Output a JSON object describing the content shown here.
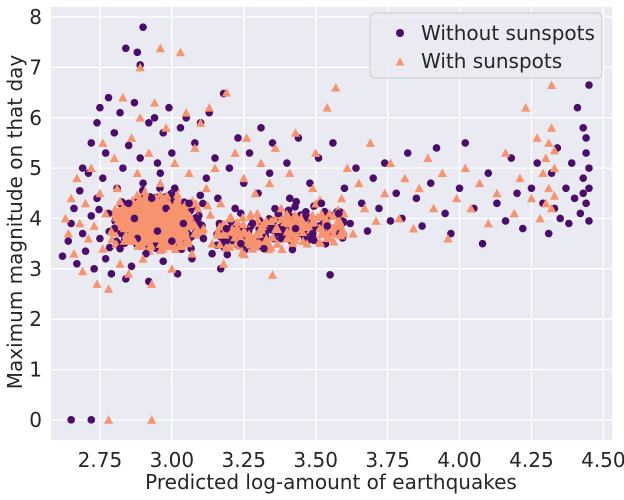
{
  "chart_data": {
    "type": "scatter",
    "title": "",
    "xlabel": "Predicted log-amount of earthquakes",
    "ylabel": "Maximum magnitude on that day",
    "xlim": [
      2.58,
      4.53
    ],
    "ylim": [
      -0.4,
      8.2
    ],
    "xticks": [
      "2.75",
      "3.00",
      "3.25",
      "3.50",
      "3.75",
      "4.00",
      "4.25",
      "4.50"
    ],
    "yticks": [
      "0",
      "1",
      "2",
      "3",
      "4",
      "5",
      "6",
      "7",
      "8"
    ],
    "grid": true,
    "background": "#eaeaf2",
    "legend_position": "upper-right",
    "series": [
      {
        "name": "Without sunspots",
        "marker": "circle",
        "color": "#4b0c6b",
        "points": [
          [
            2.62,
            3.25
          ],
          [
            2.64,
            3.55
          ],
          [
            2.65,
            3.9
          ],
          [
            2.66,
            4.2
          ],
          [
            2.67,
            3.1
          ],
          [
            2.68,
            4.55
          ],
          [
            2.69,
            3.7
          ],
          [
            2.69,
            5.0
          ],
          [
            2.7,
            3.35
          ],
          [
            2.71,
            4.9
          ],
          [
            2.72,
            4.05
          ],
          [
            2.72,
            5.5
          ],
          [
            2.73,
            3.0
          ],
          [
            2.74,
            4.4
          ],
          [
            2.74,
            5.9
          ],
          [
            2.75,
            3.6
          ],
          [
            2.75,
            6.2
          ],
          [
            2.76,
            4.8
          ],
          [
            2.77,
            3.2
          ],
          [
            2.77,
            5.3
          ],
          [
            2.78,
            6.4
          ],
          [
            2.78,
            4.1
          ],
          [
            2.79,
            2.9
          ],
          [
            2.8,
            5.7
          ],
          [
            2.8,
            3.8
          ],
          [
            2.81,
            4.6
          ],
          [
            2.82,
            6.1
          ],
          [
            2.82,
            3.4
          ],
          [
            2.83,
            5.0
          ],
          [
            2.84,
            2.8
          ],
          [
            2.84,
            7.38
          ],
          [
            2.85,
            4.3
          ],
          [
            2.85,
            5.45
          ],
          [
            2.86,
            3.05
          ],
          [
            2.87,
            6.3
          ],
          [
            2.87,
            4.0
          ],
          [
            2.88,
            7.3
          ],
          [
            2.88,
            3.6
          ],
          [
            2.89,
            5.2
          ],
          [
            2.89,
            7.05
          ],
          [
            2.9,
            7.8
          ],
          [
            2.9,
            4.7
          ],
          [
            2.91,
            3.3
          ],
          [
            2.92,
            5.9
          ],
          [
            2.92,
            2.75
          ],
          [
            2.93,
            4.4
          ],
          [
            2.94,
            6.0
          ],
          [
            2.95,
            3.75
          ],
          [
            2.95,
            5.1
          ],
          [
            2.96,
            4.9
          ],
          [
            2.97,
            3.15
          ],
          [
            2.97,
            5.7
          ],
          [
            2.98,
            4.2
          ],
          [
            2.99,
            6.2
          ],
          [
            3.0,
            3.55
          ],
          [
            3.0,
            5.3
          ],
          [
            3.01,
            4.6
          ],
          [
            3.02,
            2.9
          ],
          [
            3.03,
            5.8
          ],
          [
            3.04,
            3.9
          ],
          [
            3.05,
            6.0
          ],
          [
            3.06,
            4.3
          ],
          [
            3.07,
            3.2
          ],
          [
            3.08,
            5.5
          ],
          [
            3.09,
            4.0
          ],
          [
            3.1,
            5.9
          ],
          [
            3.11,
            3.6
          ],
          [
            3.12,
            4.8
          ],
          [
            3.13,
            6.1
          ],
          [
            3.14,
            3.3
          ],
          [
            3.15,
            5.2
          ],
          [
            3.16,
            4.4
          ],
          [
            3.17,
            3.0
          ],
          [
            3.18,
            6.48
          ],
          [
            3.19,
            3.8
          ],
          [
            3.2,
            5.0
          ],
          [
            3.22,
            4.2
          ],
          [
            3.23,
            5.6
          ],
          [
            3.24,
            3.5
          ],
          [
            3.25,
            4.7
          ],
          [
            3.27,
            5.3
          ],
          [
            3.28,
            3.9
          ],
          [
            3.3,
            4.5
          ],
          [
            3.31,
            5.8
          ],
          [
            3.32,
            3.4
          ],
          [
            3.34,
            4.9
          ],
          [
            3.35,
            5.5
          ],
          [
            3.37,
            4.1
          ],
          [
            3.38,
            3.6
          ],
          [
            3.4,
            5.1
          ],
          [
            3.41,
            4.4
          ],
          [
            3.43,
            3.8
          ],
          [
            3.44,
            5.6
          ],
          [
            3.46,
            4.0
          ],
          [
            3.48,
            4.7
          ],
          [
            3.49,
            3.7
          ],
          [
            3.51,
            5.2
          ],
          [
            3.52,
            4.3
          ],
          [
            3.54,
            3.85
          ],
          [
            3.55,
            2.88
          ],
          [
            3.56,
            5.5
          ],
          [
            3.58,
            4.1
          ],
          [
            3.6,
            4.6
          ],
          [
            3.62,
            3.9
          ],
          [
            3.64,
            5.0
          ],
          [
            3.66,
            4.3
          ],
          [
            3.68,
            3.75
          ],
          [
            3.7,
            4.8
          ],
          [
            3.72,
            4.2
          ],
          [
            3.74,
            5.1
          ],
          [
            3.76,
            3.95
          ],
          [
            3.78,
            4.5
          ],
          [
            3.8,
            4.0
          ],
          [
            3.82,
            5.3
          ],
          [
            3.85,
            4.4
          ],
          [
            3.87,
            3.85
          ],
          [
            3.9,
            4.7
          ],
          [
            3.92,
            5.4
          ],
          [
            3.95,
            4.1
          ],
          [
            3.97,
            3.7
          ],
          [
            4.0,
            4.6
          ],
          [
            4.02,
            5.5
          ],
          [
            4.05,
            4.2
          ],
          [
            4.08,
            3.5
          ],
          [
            4.1,
            4.9
          ],
          [
            4.13,
            4.3
          ],
          [
            4.16,
            3.95
          ],
          [
            4.18,
            5.2
          ],
          [
            4.2,
            4.5
          ],
          [
            4.22,
            3.8
          ],
          [
            4.25,
            4.6
          ],
          [
            4.27,
            5.1
          ],
          [
            4.29,
            4.3
          ],
          [
            4.31,
            3.7
          ],
          [
            4.32,
            4.9
          ],
          [
            4.33,
            4.2
          ],
          [
            4.34,
            5.4
          ],
          [
            4.35,
            4.0
          ],
          [
            4.37,
            4.6
          ],
          [
            4.38,
            3.9
          ],
          [
            4.39,
            5.1
          ],
          [
            4.4,
            4.4
          ],
          [
            4.41,
            6.2
          ],
          [
            4.42,
            4.1
          ],
          [
            4.43,
            4.8
          ],
          [
            4.43,
            5.8
          ],
          [
            4.44,
            4.3
          ],
          [
            4.44,
            5.3
          ],
          [
            4.45,
            3.95
          ],
          [
            4.45,
            4.6
          ],
          [
            4.45,
            5.0
          ],
          [
            4.45,
            6.65
          ],
          [
            4.44,
            5.6
          ],
          [
            4.43,
            4.5
          ],
          [
            2.65,
            0.0
          ],
          [
            2.72,
            0.0
          ]
        ]
      },
      {
        "name": "With sunspots",
        "marker": "triangle",
        "color": "#f7936e",
        "points": [
          [
            2.63,
            4.0
          ],
          [
            2.64,
            3.7
          ],
          [
            2.65,
            4.4
          ],
          [
            2.66,
            3.3
          ],
          [
            2.67,
            4.8
          ],
          [
            2.68,
            3.9
          ],
          [
            2.69,
            2.95
          ],
          [
            2.7,
            4.3
          ],
          [
            2.71,
            3.6
          ],
          [
            2.72,
            5.0
          ],
          [
            2.73,
            3.85
          ],
          [
            2.74,
            2.7
          ],
          [
            2.75,
            4.5
          ],
          [
            2.76,
            3.4
          ],
          [
            2.76,
            5.5
          ],
          [
            2.77,
            4.1
          ],
          [
            2.78,
            2.6
          ],
          [
            2.79,
            3.75
          ],
          [
            2.8,
            5.2
          ],
          [
            2.81,
            4.6
          ],
          [
            2.82,
            3.1
          ],
          [
            2.83,
            6.4
          ],
          [
            2.84,
            4.0
          ],
          [
            2.85,
            2.9
          ],
          [
            2.86,
            5.6
          ],
          [
            2.87,
            3.55
          ],
          [
            2.88,
            4.9
          ],
          [
            2.89,
            6.0
          ],
          [
            2.89,
            7.0
          ],
          [
            2.9,
            3.2
          ],
          [
            2.91,
            4.3
          ],
          [
            2.92,
            5.3
          ],
          [
            2.93,
            2.7
          ],
          [
            2.94,
            6.3
          ],
          [
            2.95,
            3.9
          ],
          [
            2.96,
            4.7
          ],
          [
            2.96,
            7.38
          ],
          [
            2.97,
            3.4
          ],
          [
            2.98,
            5.8
          ],
          [
            2.99,
            4.1
          ],
          [
            3.0,
            3.0
          ],
          [
            3.01,
            5.1
          ],
          [
            3.02,
            4.4
          ],
          [
            3.03,
            7.3
          ],
          [
            3.04,
            3.7
          ],
          [
            3.05,
            6.1
          ],
          [
            3.06,
            4.9
          ],
          [
            3.07,
            3.3
          ],
          [
            3.08,
            5.4
          ],
          [
            3.09,
            4.2
          ],
          [
            3.1,
            5.9
          ],
          [
            3.11,
            3.8
          ],
          [
            3.12,
            4.6
          ],
          [
            3.13,
            6.2
          ],
          [
            3.14,
            3.5
          ],
          [
            3.15,
            5.0
          ],
          [
            3.17,
            4.3
          ],
          [
            3.18,
            3.1
          ],
          [
            3.19,
            6.5
          ],
          [
            3.2,
            4.0
          ],
          [
            3.22,
            5.3
          ],
          [
            3.23,
            3.7
          ],
          [
            3.25,
            4.8
          ],
          [
            3.26,
            5.6
          ],
          [
            3.28,
            3.4
          ],
          [
            3.29,
            4.5
          ],
          [
            3.31,
            5.1
          ],
          [
            3.32,
            3.9
          ],
          [
            3.34,
            4.7
          ],
          [
            3.35,
            2.88
          ],
          [
            3.36,
            5.4
          ],
          [
            3.38,
            4.2
          ],
          [
            3.4,
            3.6
          ],
          [
            3.41,
            4.9
          ],
          [
            3.43,
            5.7
          ],
          [
            3.45,
            4.0
          ],
          [
            3.47,
            3.5
          ],
          [
            3.49,
            4.6
          ],
          [
            3.5,
            5.3
          ],
          [
            3.52,
            4.1
          ],
          [
            3.54,
            6.2
          ],
          [
            3.56,
            3.8
          ],
          [
            3.57,
            6.6
          ],
          [
            3.59,
            4.4
          ],
          [
            3.61,
            5.0
          ],
          [
            3.63,
            3.7
          ],
          [
            3.65,
            4.7
          ],
          [
            3.67,
            4.2
          ],
          [
            3.69,
            5.5
          ],
          [
            3.71,
            3.95
          ],
          [
            3.74,
            4.5
          ],
          [
            3.76,
            5.1
          ],
          [
            3.79,
            4.0
          ],
          [
            3.81,
            4.8
          ],
          [
            3.84,
            3.8
          ],
          [
            3.86,
            4.6
          ],
          [
            3.89,
            5.2
          ],
          [
            3.91,
            4.2
          ],
          [
            3.94,
            4.9
          ],
          [
            3.96,
            3.6
          ],
          [
            3.99,
            4.4
          ],
          [
            4.02,
            5.0
          ],
          [
            4.04,
            4.2
          ],
          [
            4.07,
            4.7
          ],
          [
            4.1,
            3.9
          ],
          [
            4.13,
            4.5
          ],
          [
            4.16,
            5.3
          ],
          [
            4.19,
            4.1
          ],
          [
            4.21,
            4.8
          ],
          [
            4.23,
            6.2
          ],
          [
            4.25,
            4.4
          ],
          [
            4.27,
            5.6
          ],
          [
            4.28,
            4.0
          ],
          [
            4.29,
            4.9
          ],
          [
            4.3,
            5.2
          ],
          [
            4.3,
            4.3
          ],
          [
            4.31,
            5.5
          ],
          [
            4.31,
            4.6
          ],
          [
            4.32,
            5.8
          ],
          [
            4.32,
            6.65
          ],
          [
            4.32,
            4.2
          ],
          [
            4.33,
            5.0
          ],
          [
            4.33,
            4.45
          ],
          [
            4.33,
            5.35
          ],
          [
            2.78,
            0.0
          ],
          [
            2.93,
            0.0
          ]
        ]
      }
    ]
  }
}
